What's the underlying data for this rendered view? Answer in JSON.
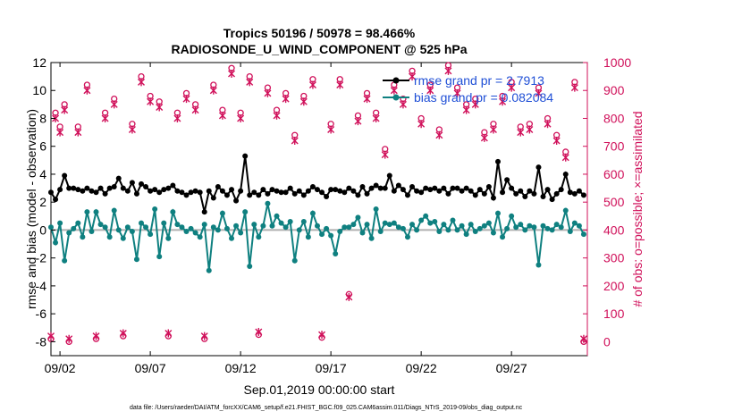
{
  "chart_data": {
    "type": "line",
    "title_line1": "Tropics 50196 / 50978 = 98.466%",
    "title_line2": "RADIOSONDE_U_WIND_COMPONENT @ 525 hPa",
    "xlabel": "Sep.01,2019 00:00:00 start",
    "ylabel_left": "rmse and bias (model - observation)",
    "ylabel_right": "# of obs: o=possible; ×=assimilated",
    "footnote": "data file: /Users/raeder/DAI/ATM_forcXX/CAM6_setup/f.e21.FHIST_BGC.f09_025.CAM6assim.011/Diags_NTrS_2019-09/obs_diag_output.nc",
    "xlim": [
      1.5,
      31.2
    ],
    "ylim_left": [
      -9,
      12
    ],
    "ylim_right": [
      -50,
      1000
    ],
    "x_ticks": [
      2,
      7,
      12,
      17,
      22,
      27
    ],
    "x_tick_labels": [
      "09/02",
      "09/07",
      "09/12",
      "09/17",
      "09/22",
      "09/27"
    ],
    "y_ticks_left": [
      -8,
      -6,
      -4,
      -2,
      0,
      2,
      4,
      6,
      8,
      10,
      12
    ],
    "y_tick_labels_left": [
      "-8",
      "-6",
      "-4",
      "-2",
      "0",
      "2",
      "4",
      "6",
      "8",
      "10",
      "12"
    ],
    "y_ticks_right": [
      0,
      100,
      200,
      300,
      400,
      500,
      600,
      700,
      800,
      900,
      1000
    ],
    "y_tick_labels_right": [
      "0",
      "100",
      "200",
      "300",
      "400",
      "500",
      "600",
      "700",
      "800",
      "900",
      "1000"
    ],
    "legend": [
      {
        "name": "rmse grand pr = 2.7913",
        "color": "#000000"
      },
      {
        "name": "bias grand pr = 0.082084",
        "color": "#0f8080"
      }
    ],
    "legend_placement": "top-right",
    "colors": {
      "rmse": "#000000",
      "bias": "#0f8080",
      "obs": "#d0105a",
      "zero_line": "#b0b0b0",
      "legend_text": "#1f4fd6"
    },
    "series": [
      {
        "name": "rmse",
        "x": [
          1.5,
          1.75,
          2,
          2.25,
          2.5,
          2.75,
          3,
          3.25,
          3.5,
          3.75,
          4,
          4.25,
          4.5,
          4.75,
          5,
          5.25,
          5.5,
          5.75,
          6,
          6.25,
          6.5,
          6.75,
          7,
          7.25,
          7.5,
          7.75,
          8,
          8.25,
          8.5,
          8.75,
          9,
          9.25,
          9.5,
          9.75,
          10,
          10.25,
          10.5,
          10.75,
          11,
          11.25,
          11.5,
          11.75,
          12,
          12.25,
          12.5,
          12.75,
          13,
          13.25,
          13.5,
          13.75,
          14,
          14.25,
          14.5,
          14.75,
          15,
          15.25,
          15.5,
          15.75,
          16,
          16.25,
          16.5,
          16.75,
          17,
          17.25,
          17.5,
          17.75,
          18,
          18.25,
          18.5,
          18.75,
          19,
          19.25,
          19.5,
          19.75,
          20,
          20.25,
          20.5,
          20.75,
          21,
          21.25,
          21.5,
          21.75,
          22,
          22.25,
          22.5,
          22.75,
          23,
          23.25,
          23.5,
          23.75,
          24,
          24.25,
          24.5,
          24.75,
          25,
          25.25,
          25.5,
          25.75,
          26,
          26.25,
          26.5,
          26.75,
          27,
          27.25,
          27.5,
          27.75,
          28,
          28.25,
          28.5,
          28.75,
          29,
          29.25,
          29.5,
          29.75,
          30,
          30.25,
          30.5,
          30.75,
          31
        ],
        "values": [
          2.7,
          2.2,
          2.9,
          3.9,
          3.0,
          3.0,
          2.9,
          2.8,
          3.0,
          2.8,
          2.7,
          3.0,
          2.6,
          3.0,
          3.1,
          3.7,
          3.0,
          2.8,
          3.4,
          2.6,
          3.3,
          3.1,
          2.8,
          2.9,
          2.7,
          2.9,
          3.0,
          3.2,
          2.8,
          2.7,
          2.5,
          2.7,
          2.8,
          2.7,
          1.3,
          2.8,
          2.3,
          3.1,
          2.8,
          2.5,
          2.9,
          2.1,
          2.8,
          5.3,
          2.5,
          2.7,
          2.5,
          2.9,
          2.6,
          2.9,
          2.8,
          2.7,
          2.7,
          3.0,
          2.6,
          2.8,
          2.5,
          2.8,
          3.1,
          2.9,
          2.7,
          2.4,
          2.9,
          2.9,
          2.8,
          2.7,
          3.0,
          2.8,
          2.5,
          3.1,
          2.6,
          3.0,
          3.2,
          3.0,
          3.0,
          3.9,
          2.8,
          3.2,
          2.9,
          2.5,
          3.1,
          2.8,
          2.7,
          3.0,
          2.9,
          3.0,
          2.8,
          3.0,
          2.6,
          3.0,
          3.0,
          2.8,
          3.0,
          2.8,
          2.5,
          2.9,
          2.6,
          3.1,
          2.3,
          4.9,
          2.7,
          3.6,
          3.0,
          2.6,
          2.8,
          2.4,
          2.8,
          2.6,
          4.5,
          2.4,
          2.9,
          2.2,
          2.6,
          2.9,
          4.0,
          2.7,
          2.6,
          2.8,
          2.5
        ]
      },
      {
        "name": "bias",
        "x": [
          1.5,
          1.75,
          2,
          2.25,
          2.5,
          2.75,
          3,
          3.25,
          3.5,
          3.75,
          4,
          4.25,
          4.5,
          4.75,
          5,
          5.25,
          5.5,
          5.75,
          6,
          6.25,
          6.5,
          6.75,
          7,
          7.25,
          7.5,
          7.75,
          8,
          8.25,
          8.5,
          8.75,
          9,
          9.25,
          9.5,
          9.75,
          10,
          10.25,
          10.5,
          10.75,
          11,
          11.25,
          11.5,
          11.75,
          12,
          12.25,
          12.5,
          12.75,
          13,
          13.25,
          13.5,
          13.75,
          14,
          14.25,
          14.5,
          14.75,
          15,
          15.25,
          15.5,
          15.75,
          16,
          16.25,
          16.5,
          16.75,
          17,
          17.25,
          17.5,
          17.75,
          18,
          18.25,
          18.5,
          18.75,
          19,
          19.25,
          19.5,
          19.75,
          20,
          20.25,
          20.5,
          20.75,
          21,
          21.25,
          21.5,
          21.75,
          22,
          22.25,
          22.5,
          22.75,
          23,
          23.25,
          23.5,
          23.75,
          24,
          24.25,
          24.5,
          24.75,
          25,
          25.25,
          25.5,
          25.75,
          26,
          26.25,
          26.5,
          26.75,
          27,
          27.25,
          27.5,
          27.75,
          28,
          28.25,
          28.5,
          28.75,
          29,
          29.25,
          29.5,
          29.75,
          30,
          30.25,
          30.5,
          30.75,
          31
        ],
        "values": [
          0.2,
          -0.9,
          0.5,
          -2.2,
          -0.2,
          0.1,
          0.5,
          -0.5,
          1.3,
          -0.1,
          1.3,
          0.4,
          0.2,
          -0.5,
          1.4,
          0.0,
          -0.6,
          0.2,
          -0.1,
          -2.1,
          0.5,
          0.2,
          -0.3,
          1.5,
          -1.9,
          0.5,
          -0.6,
          1.3,
          0.4,
          0.2,
          -0.1,
          0.1,
          -0.2,
          -0.5,
          0.4,
          -2.9,
          0.2,
          0.0,
          1.2,
          0.1,
          -0.6,
          0.3,
          -0.2,
          1.3,
          -2.6,
          0.4,
          -0.5,
          0.3,
          1.9,
          0.3,
          1.0,
          0.5,
          0.2,
          0.6,
          -2.2,
          0.0,
          0.6,
          -0.5,
          1.2,
          0.3,
          -0.3,
          0.1,
          -0.4,
          -1.7,
          -0.1,
          0.2,
          0.2,
          0.4,
          0.9,
          -0.2,
          0.4,
          -0.6,
          1.5,
          -0.1,
          0.5,
          0.4,
          0.5,
          0.2,
          0.1,
          -0.5,
          0.4,
          0.0,
          0.7,
          1.0,
          0.5,
          0.6,
          -0.1,
          0.4,
          0.0,
          0.7,
          0.0,
          0.3,
          -0.3,
          0.4,
          -0.1,
          0.1,
          0.3,
          0.5,
          -0.2,
          1.2,
          -0.5,
          0.1,
          1.0,
          0.2,
          0.4,
          0.0,
          0.3,
          0.2,
          -2.5,
          0.3,
          0.1,
          0.0,
          0.4,
          0.2,
          1.4,
          -0.1,
          0.5,
          0.3,
          -0.3
        ]
      },
      {
        "name": "obs possible (o)",
        "x": [
          1.5,
          1.75,
          2,
          2.25,
          2.5,
          3,
          3.5,
          4,
          4.5,
          5,
          5.5,
          6,
          6.5,
          7,
          7.5,
          8,
          8.5,
          9,
          9.5,
          10,
          10.5,
          11,
          11.5,
          12,
          12.5,
          13,
          13.5,
          14,
          14.5,
          15,
          15.5,
          16,
          16.5,
          17,
          17.5,
          18,
          18.5,
          19,
          19.5,
          20,
          20.5,
          21,
          21.5,
          22,
          22.5,
          23,
          23.5,
          24,
          24.5,
          25,
          25.5,
          26,
          26.5,
          27,
          27.5,
          28,
          28.5,
          29,
          29.5,
          30,
          30.5,
          31
        ],
        "values": [
          10,
          820,
          770,
          850,
          0,
          770,
          920,
          10,
          820,
          870,
          20,
          780,
          950,
          880,
          860,
          20,
          820,
          890,
          850,
          10,
          920,
          830,
          980,
          820,
          950,
          25,
          910,
          830,
          890,
          740,
          880,
          940,
          15,
          780,
          940,
          170,
          810,
          890,
          820,
          690,
          920,
          870,
          970,
          800,
          920,
          760,
          990,
          910,
          850,
          870,
          750,
          780,
          880,
          930,
          770,
          780,
          910,
          800,
          740,
          680,
          930,
          0
        ]
      },
      {
        "name": "obs assimilated (×)",
        "x": [
          1.5,
          1.75,
          2,
          2.25,
          2.5,
          3,
          3.5,
          4,
          4.5,
          5,
          5.5,
          6,
          6.5,
          7,
          7.5,
          8,
          8.5,
          9,
          9.5,
          10,
          10.5,
          11,
          11.5,
          12,
          12.5,
          13,
          13.5,
          14,
          14.5,
          15,
          15.5,
          16,
          16.5,
          17,
          17.5,
          18,
          18.5,
          19,
          19.5,
          20,
          20.5,
          21,
          21.5,
          22,
          22.5,
          23,
          23.5,
          24,
          24.5,
          25,
          25.5,
          26,
          26.5,
          27,
          27.5,
          28,
          28.5,
          29,
          29.5,
          30,
          30.5,
          31
        ],
        "values": [
          20,
          800,
          750,
          830,
          10,
          750,
          900,
          20,
          800,
          850,
          30,
          760,
          930,
          860,
          840,
          30,
          800,
          870,
          830,
          20,
          900,
          810,
          960,
          800,
          930,
          35,
          890,
          810,
          870,
          720,
          860,
          920,
          25,
          760,
          920,
          160,
          790,
          870,
          800,
          670,
          900,
          850,
          950,
          780,
          900,
          740,
          970,
          890,
          830,
          850,
          730,
          760,
          860,
          910,
          750,
          760,
          890,
          780,
          720,
          660,
          910,
          10
        ]
      }
    ]
  }
}
